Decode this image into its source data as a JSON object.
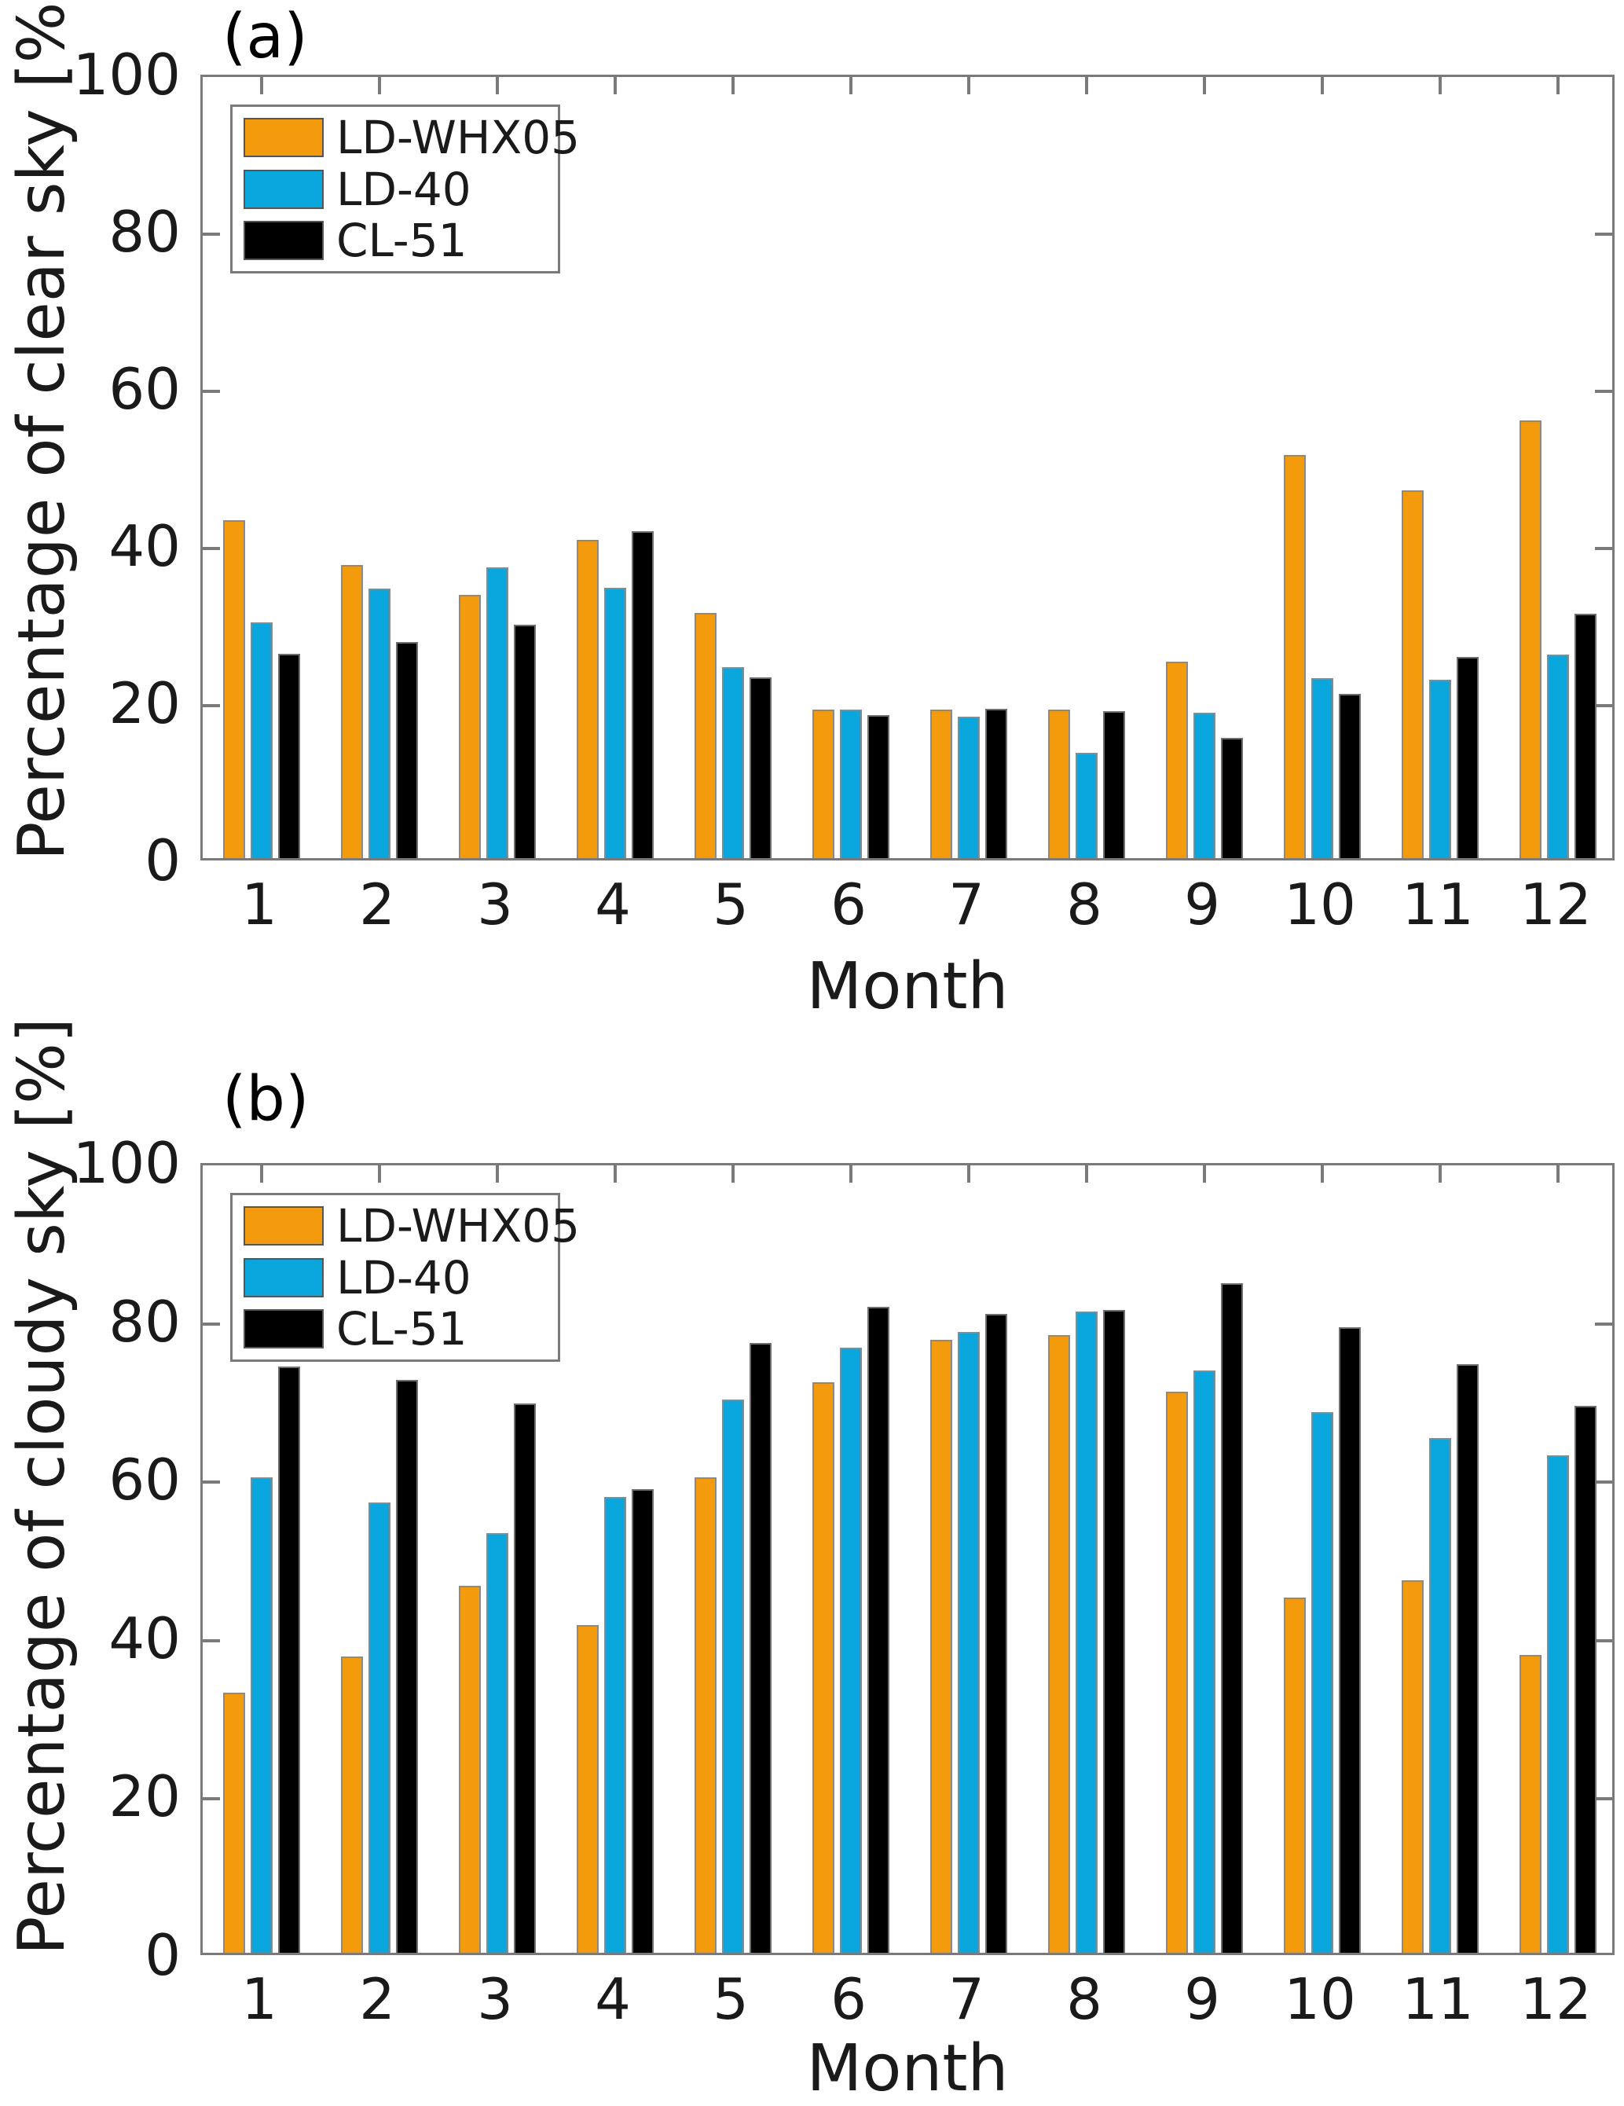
{
  "figure": {
    "background": "#ffffff",
    "axis_color": "#7a7a7a",
    "text_color": "#1a1a1a"
  },
  "chart_data": [
    {
      "panel": "(a)",
      "type": "bar",
      "title": "",
      "xlabel": "Month",
      "ylabel": "Percentage of clear sky [%]",
      "categories": [
        "1",
        "2",
        "3",
        "4",
        "5",
        "6",
        "7",
        "8",
        "9",
        "10",
        "11",
        "12"
      ],
      "ylim": [
        0,
        100
      ],
      "yticks": [
        0,
        20,
        40,
        60,
        80,
        100
      ],
      "grid": false,
      "legend_position": "top-left",
      "series": [
        {
          "name": "LD-WHX05",
          "color": "#F49A0D",
          "values": [
            43.0,
            37.3,
            33.5,
            40.5,
            31.2,
            18.9,
            18.9,
            18.9,
            25.0,
            51.3,
            46.8,
            55.7
          ]
        },
        {
          "name": "LD-40",
          "color": "#0AA7DF",
          "values": [
            30.0,
            34.3,
            37.0,
            34.4,
            24.3,
            18.9,
            18.0,
            13.4,
            18.5,
            22.9,
            22.7,
            25.9
          ]
        },
        {
          "name": "CL-51",
          "color": "#000000",
          "values": [
            26.0,
            27.5,
            29.7,
            41.6,
            23.0,
            18.2,
            19.0,
            18.7,
            15.3,
            20.9,
            25.6,
            31.1
          ]
        }
      ]
    },
    {
      "panel": "(b)",
      "type": "bar",
      "title": "",
      "xlabel": "Month",
      "ylabel": "Percentage of cloudy sky [%]",
      "categories": [
        "1",
        "2",
        "3",
        "4",
        "5",
        "6",
        "7",
        "8",
        "9",
        "10",
        "11",
        "12"
      ],
      "ylim": [
        0,
        100
      ],
      "yticks": [
        0,
        20,
        40,
        60,
        80,
        100
      ],
      "grid": false,
      "legend_position": "top-left",
      "series": [
        {
          "name": "LD-WHX05",
          "color": "#F49A0D",
          "values": [
            32.8,
            37.4,
            46.3,
            41.4,
            60.0,
            72.0,
            77.4,
            78.0,
            70.8,
            44.8,
            47.0,
            37.6
          ]
        },
        {
          "name": "LD-40",
          "color": "#0AA7DF",
          "values": [
            60.0,
            56.8,
            53.0,
            57.5,
            69.8,
            76.4,
            78.4,
            81.0,
            73.5,
            68.3,
            65.0,
            62.8
          ]
        },
        {
          "name": "CL-51",
          "color": "#000000",
          "values": [
            74.0,
            72.3,
            69.3,
            58.5,
            77.0,
            81.5,
            80.7,
            81.2,
            84.5,
            79.0,
            74.3,
            69.0
          ]
        }
      ]
    }
  ]
}
